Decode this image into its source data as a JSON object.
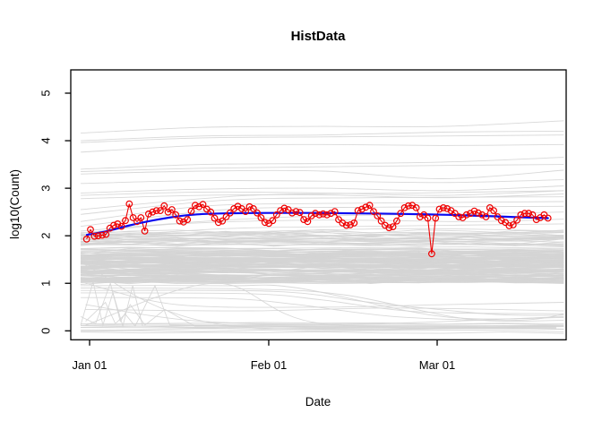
{
  "colors": {
    "observed_red": "#ee0000",
    "smooth_blue": "#0b0bf0",
    "history_gray": "#d4d4d4",
    "axis_black": "#000000",
    "background": "#ffffff"
  },
  "chart_data": {
    "type": "line",
    "title": "HistData",
    "xlabel": "Date",
    "ylabel": "log10(Count)",
    "ylim": [
      0,
      5
    ],
    "y_tick_labels": [
      "0",
      "1",
      "2",
      "3",
      "4",
      "5"
    ],
    "y_tick_values": [
      0,
      1,
      2,
      3,
      4,
      5
    ],
    "x_ticks": [
      {
        "label": "Jan 01",
        "f": 0.038
      },
      {
        "label": "Feb 01",
        "f": 0.3996
      },
      {
        "label": "Mar 01",
        "f": 0.7396
      }
    ],
    "grid": false,
    "legend": "none",
    "series": [
      {
        "name": "observed-counts",
        "style": "line-with-open-circles",
        "color": "#ee0000",
        "x_start_frac": 0.032,
        "x_end_frac": 0.9633,
        "values": [
          1.93,
          2.13,
          1.99,
          2.0,
          2.01,
          2.03,
          2.16,
          2.22,
          2.25,
          2.2,
          2.32,
          2.67,
          2.38,
          2.3,
          2.38,
          2.1,
          2.46,
          2.5,
          2.53,
          2.53,
          2.63,
          2.5,
          2.55,
          2.44,
          2.31,
          2.29,
          2.34,
          2.52,
          2.64,
          2.61,
          2.66,
          2.56,
          2.5,
          2.37,
          2.28,
          2.31,
          2.4,
          2.48,
          2.57,
          2.62,
          2.57,
          2.51,
          2.61,
          2.57,
          2.48,
          2.38,
          2.28,
          2.26,
          2.32,
          2.44,
          2.53,
          2.58,
          2.55,
          2.48,
          2.51,
          2.49,
          2.34,
          2.3,
          2.42,
          2.47,
          2.44,
          2.46,
          2.44,
          2.47,
          2.51,
          2.34,
          2.27,
          2.22,
          2.23,
          2.27,
          2.53,
          2.56,
          2.6,
          2.64,
          2.51,
          2.42,
          2.31,
          2.22,
          2.17,
          2.19,
          2.31,
          2.47,
          2.59,
          2.63,
          2.64,
          2.59,
          2.4,
          2.44,
          2.37,
          1.62,
          2.37,
          2.56,
          2.59,
          2.57,
          2.53,
          2.47,
          2.4,
          2.38,
          2.44,
          2.47,
          2.52,
          2.48,
          2.44,
          2.4,
          2.59,
          2.53,
          2.4,
          2.32,
          2.28,
          2.21,
          2.23,
          2.33,
          2.44,
          2.47,
          2.47,
          2.44,
          2.34,
          2.38,
          2.44,
          2.37
        ]
      },
      {
        "name": "smooth-trend",
        "style": "smooth-line",
        "color": "#0b0bf0",
        "points": [
          [
            0.0326,
            2.02
          ],
          [
            0.0741,
            2.1
          ],
          [
            0.1193,
            2.22
          ],
          [
            0.1646,
            2.32
          ],
          [
            0.2098,
            2.4
          ],
          [
            0.255,
            2.45
          ],
          [
            0.3092,
            2.47
          ],
          [
            0.3996,
            2.48
          ],
          [
            0.49,
            2.48
          ],
          [
            0.5805,
            2.47
          ],
          [
            0.6709,
            2.46
          ],
          [
            0.7613,
            2.44
          ],
          [
            0.8517,
            2.41
          ],
          [
            0.906,
            2.39
          ],
          [
            0.9633,
            2.37
          ]
        ]
      }
    ],
    "background_series": {
      "description": "historical count trajectories",
      "color": "#d4d4d4",
      "f_start": 0.02,
      "f_end": 0.995,
      "upper_lines": [
        [
          [
            0,
            4.16
          ],
          [
            0.25,
            4.28
          ],
          [
            0.5,
            4.3
          ],
          [
            0.75,
            4.3
          ],
          [
            1,
            4.42
          ]
        ],
        [
          [
            0,
            4.0
          ],
          [
            0.25,
            4.1
          ],
          [
            0.5,
            4.12
          ],
          [
            0.75,
            4.18
          ],
          [
            1,
            4.2
          ]
        ],
        [
          [
            0,
            3.96
          ],
          [
            0.25,
            4.06
          ],
          [
            0.5,
            4.08
          ],
          [
            0.75,
            4.1
          ],
          [
            1,
            4.12
          ]
        ],
        [
          [
            0,
            3.76
          ],
          [
            0.25,
            3.9
          ],
          [
            0.5,
            3.92
          ],
          [
            0.75,
            3.9
          ],
          [
            1,
            3.92
          ]
        ],
        [
          [
            0,
            3.4
          ],
          [
            0.25,
            3.5
          ],
          [
            0.5,
            3.52
          ],
          [
            0.75,
            3.55
          ],
          [
            1,
            3.65
          ]
        ],
        [
          [
            0,
            3.35
          ],
          [
            0.25,
            3.42
          ],
          [
            0.5,
            3.45
          ],
          [
            0.75,
            3.48
          ],
          [
            1,
            3.5
          ]
        ],
        [
          [
            0,
            3.3
          ],
          [
            0.25,
            3.36
          ],
          [
            0.5,
            3.36
          ],
          [
            0.75,
            3.2
          ],
          [
            1,
            3.38
          ]
        ],
        [
          [
            0,
            3.1
          ],
          [
            0.25,
            3.16
          ],
          [
            0.5,
            3.15
          ],
          [
            0.75,
            3.12
          ],
          [
            1,
            3.18
          ]
        ],
        [
          [
            0,
            2.9
          ],
          [
            0.25,
            2.98
          ],
          [
            0.5,
            3.0
          ],
          [
            0.75,
            2.95
          ],
          [
            1,
            3.05
          ]
        ],
        [
          [
            0,
            2.85
          ],
          [
            0.25,
            2.92
          ],
          [
            0.5,
            2.9
          ],
          [
            0.75,
            2.85
          ],
          [
            1,
            2.95
          ]
        ],
        [
          [
            0,
            2.78
          ],
          [
            0.25,
            2.85
          ],
          [
            0.5,
            2.86
          ],
          [
            0.75,
            2.8
          ],
          [
            1,
            2.88
          ]
        ]
      ],
      "mid_sparse_lines": [
        [
          [
            0,
            2.05
          ],
          [
            0.2,
            2.25
          ],
          [
            0.5,
            2.33
          ],
          [
            0.8,
            2.3
          ],
          [
            1,
            2.35
          ]
        ],
        [
          [
            0,
            2.1
          ],
          [
            0.25,
            2.3
          ],
          [
            0.5,
            2.42
          ],
          [
            0.75,
            2.45
          ],
          [
            1,
            2.5
          ]
        ],
        [
          [
            0,
            2.2
          ],
          [
            0.3,
            2.55
          ],
          [
            0.6,
            2.6
          ],
          [
            1,
            2.62
          ]
        ],
        [
          [
            0,
            2.3
          ],
          [
            0.25,
            2.62
          ],
          [
            0.5,
            2.68
          ],
          [
            0.75,
            2.7
          ],
          [
            1,
            2.72
          ]
        ],
        [
          [
            0,
            1.95
          ],
          [
            0.3,
            2.15
          ],
          [
            0.6,
            2.2
          ],
          [
            1,
            2.25
          ]
        ],
        [
          [
            0,
            2.0
          ],
          [
            0.4,
            2.1
          ],
          [
            0.7,
            2.15
          ],
          [
            1,
            2.1
          ]
        ],
        [
          [
            0,
            2.45
          ],
          [
            0.3,
            2.75
          ],
          [
            0.6,
            2.8
          ],
          [
            1,
            2.82
          ]
        ],
        [
          [
            0,
            2.55
          ],
          [
            0.35,
            2.85
          ],
          [
            0.7,
            2.9
          ],
          [
            1,
            2.95
          ]
        ]
      ],
      "low_lines": [
        [
          [
            0,
            0.95
          ],
          [
            0.3,
            0.95
          ],
          [
            0.45,
            0.9
          ],
          [
            0.75,
            0.3
          ],
          [
            1,
            0.28
          ]
        ],
        [
          [
            0,
            0.9
          ],
          [
            0.35,
            0.88
          ],
          [
            0.55,
            0.75
          ],
          [
            0.8,
            0.25
          ],
          [
            1,
            0.22
          ]
        ],
        [
          [
            0,
            0.85
          ],
          [
            0.4,
            0.83
          ],
          [
            0.6,
            0.6
          ],
          [
            0.85,
            0.35
          ],
          [
            1,
            0.33
          ]
        ],
        [
          [
            0,
            0.8
          ],
          [
            0.35,
            0.78
          ],
          [
            0.5,
            0.65
          ],
          [
            0.7,
            0.4
          ],
          [
            1,
            0.36
          ]
        ],
        [
          [
            0,
            0.7
          ],
          [
            0.3,
            0.68
          ],
          [
            0.45,
            0.55
          ],
          [
            0.65,
            0.3
          ],
          [
            0.9,
            0.22
          ],
          [
            1,
            0.35
          ]
        ],
        [
          [
            0.01,
            1.38
          ],
          [
            0.3,
            0.12
          ],
          [
            1,
            0.1
          ]
        ],
        [
          [
            0.01,
            0.12
          ],
          [
            0.28,
            1.0
          ],
          [
            0.5,
            0.15
          ],
          [
            1,
            0.12
          ]
        ],
        [
          [
            0.01,
            0.55
          ],
          [
            0.25,
            0.2
          ],
          [
            0.6,
            0.15
          ],
          [
            1,
            0.3
          ]
        ],
        [
          [
            0.01,
            1.0
          ],
          [
            0.2,
            0.55
          ],
          [
            0.5,
            0.5
          ],
          [
            0.75,
            0.55
          ],
          [
            1,
            0.6
          ]
        ],
        [
          [
            0.01,
            0.45
          ],
          [
            0.35,
            0.42
          ],
          [
            0.65,
            0.48
          ],
          [
            1,
            0.42
          ]
        ]
      ],
      "zigzag_lines": [
        [
          [
            0.02,
            0.12
          ],
          [
            0.045,
            1.03
          ],
          [
            0.065,
            0.12
          ],
          [
            0.085,
            0.8
          ],
          [
            0.105,
            0.1
          ],
          [
            0.125,
            0.95
          ],
          [
            0.145,
            0.1
          ],
          [
            0.23,
            0.08
          ],
          [
            0.5,
            0.06
          ],
          [
            0.98,
            0.05
          ]
        ],
        [
          [
            0.02,
            0.3
          ],
          [
            0.05,
            0.15
          ],
          [
            0.08,
            1.0
          ],
          [
            0.1,
            0.2
          ],
          [
            0.12,
            0.55
          ],
          [
            0.15,
            0.12
          ],
          [
            0.19,
            0.45
          ],
          [
            0.25,
            0.1
          ],
          [
            0.6,
            0.08
          ],
          [
            0.98,
            0.07
          ]
        ],
        [
          [
            0.03,
            0.2
          ],
          [
            0.07,
            0.6
          ],
          [
            0.09,
            0.15
          ],
          [
            0.11,
            0.35
          ],
          [
            0.13,
            0.1
          ],
          [
            0.17,
            0.95
          ],
          [
            0.2,
            0.12
          ],
          [
            0.33,
            0.1
          ],
          [
            0.98,
            0.09
          ]
        ]
      ],
      "bottom_lines_values": [
        0.16,
        0.13,
        0.1,
        0.08,
        0.05,
        0.03,
        0.0,
        -0.04
      ],
      "dense_band": {
        "count": 160,
        "value_min": 0.95,
        "value_max": 2.1,
        "seed": 7
      }
    }
  }
}
